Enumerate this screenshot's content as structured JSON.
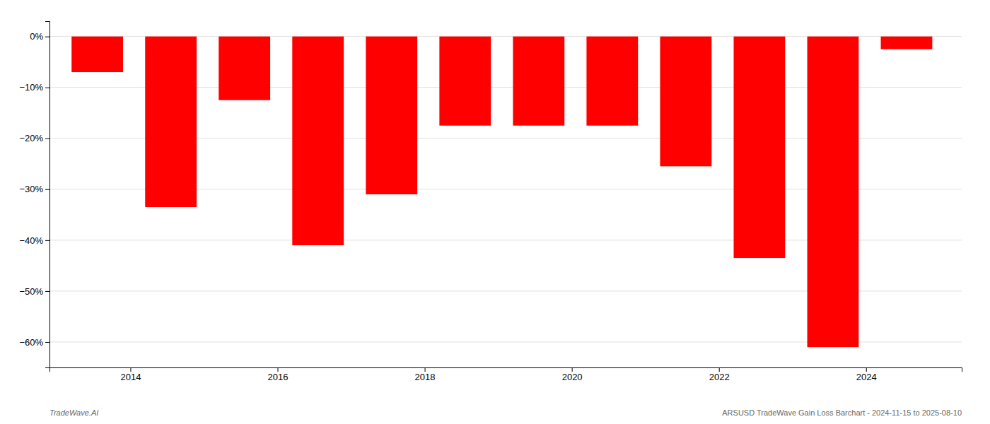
{
  "chart_data": {
    "type": "bar",
    "x": [
      2013.55,
      2014.55,
      2015.55,
      2016.55,
      2017.55,
      2018.55,
      2019.55,
      2020.55,
      2021.55,
      2022.55,
      2023.55,
      2024.55
    ],
    "values": [
      -7.0,
      -33.5,
      -12.5,
      -41.0,
      -31.0,
      -17.5,
      -17.5,
      -17.5,
      -25.5,
      -43.5,
      -61.0,
      -2.5
    ],
    "color": "#ff0000",
    "xlim": [
      2012.9,
      2025.3
    ],
    "xticks": [
      2014,
      2016,
      2018,
      2020,
      2022,
      2024
    ],
    "ylim": [
      -65,
      3
    ],
    "yticks": [
      {
        "value": 0,
        "label": "0%"
      },
      {
        "value": -10,
        "label": "−10%"
      },
      {
        "value": -20,
        "label": "−20%"
      },
      {
        "value": -30,
        "label": "−30%"
      },
      {
        "value": -40,
        "label": "−40%"
      },
      {
        "value": -50,
        "label": "−50%"
      },
      {
        "value": -60,
        "label": "−60%"
      }
    ],
    "grid": "y",
    "annotations": [
      "TradeWave.AI",
      "ARSUSD TradeWave Gain Loss Barchart - 2024-11-15 to 2025-08-10"
    ]
  }
}
